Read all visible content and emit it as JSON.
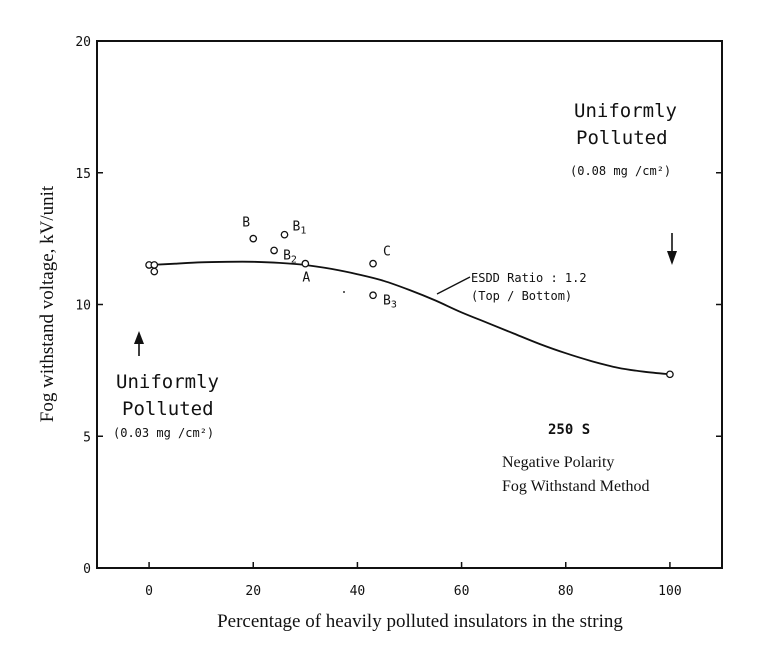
{
  "chart_data": {
    "type": "line",
    "xlabel": "Percentage of heavily polluted insulators in the string",
    "ylabel": "Fog withstand voltage, kV/unit",
    "xlim": [
      -10,
      110
    ],
    "ylim": [
      0,
      20
    ],
    "x_ticks": [
      0,
      20,
      40,
      60,
      80,
      100
    ],
    "x_tick_labels": [
      "0",
      "20",
      "40",
      "60",
      "80",
      "100"
    ],
    "y_ticks": [
      0,
      5,
      10,
      15,
      20
    ],
    "y_tick_labels": [
      "0",
      "5",
      "10",
      "15",
      "20"
    ],
    "grid": false,
    "series": [
      {
        "name": "ESDD Ratio 1.2 (Top / Bottom)",
        "x": [
          0,
          5,
          10,
          15,
          20,
          25,
          30,
          35,
          40,
          45,
          50,
          55,
          60,
          65,
          70,
          75,
          80,
          85,
          90,
          95,
          100
        ],
        "y": [
          11.5,
          11.55,
          11.6,
          11.62,
          11.62,
          11.58,
          11.5,
          11.35,
          11.15,
          10.9,
          10.55,
          10.15,
          9.7,
          9.3,
          8.9,
          8.5,
          8.15,
          7.85,
          7.6,
          7.45,
          7.35
        ]
      }
    ],
    "points": [
      {
        "x": 0,
        "y": 11.5,
        "label": ""
      },
      {
        "x": 1,
        "y": 11.5,
        "label": ""
      },
      {
        "x": 1,
        "y": 11.25,
        "label": ""
      },
      {
        "x": 20,
        "y": 12.5,
        "label": "B"
      },
      {
        "x": 26,
        "y": 12.65,
        "label": "B1"
      },
      {
        "x": 24,
        "y": 12.05,
        "label": "B2"
      },
      {
        "x": 30,
        "y": 11.55,
        "label": "A"
      },
      {
        "x": 43,
        "y": 11.55,
        "label": "C"
      },
      {
        "x": 43,
        "y": 10.35,
        "label": "B3"
      },
      {
        "x": 100,
        "y": 7.35,
        "label": ""
      }
    ],
    "annotations": {
      "uniform_high_line1": "Uniformly",
      "uniform_high_line2": "Polluted",
      "uniform_high_density": "(0.08 mg /cm²)",
      "uniform_low_line1": "Uniformly",
      "uniform_low_line2": "Polluted",
      "uniform_low_density": "(0.03 mg /cm²)",
      "esdd_line1": "ESDD Ratio : 1.2",
      "esdd_line2": "(Top / Bottom)",
      "duration": "250 S",
      "method_line1": "Negative Polarity",
      "method_line2": "Fog Withstand Method"
    }
  }
}
